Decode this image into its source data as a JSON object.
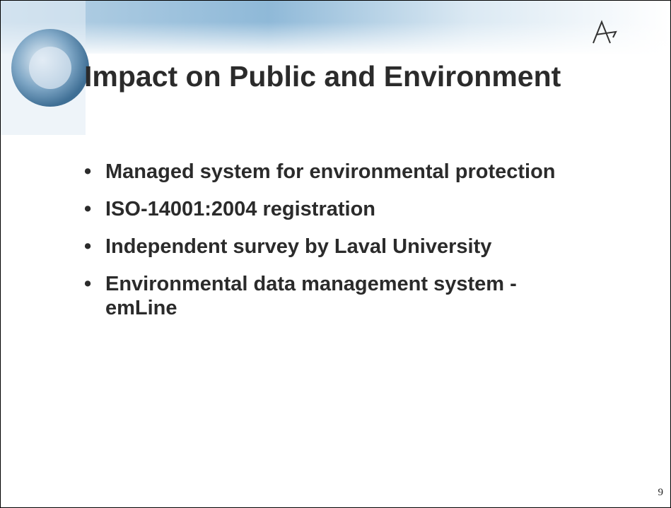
{
  "slide": {
    "title": "Impact on Public and Environment",
    "bullets": [
      "Managed system for environmental protection",
      "ISO-14001:2004 registration",
      "Independent survey by Laval University",
      "Environmental data management system - emLine"
    ],
    "page_number": "9"
  }
}
